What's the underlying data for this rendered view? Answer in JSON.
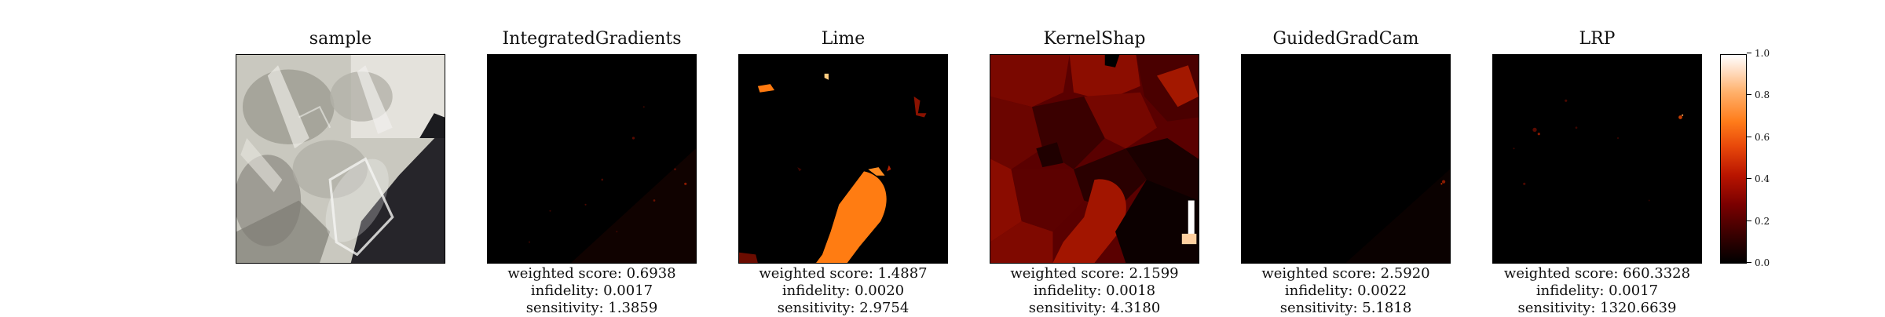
{
  "chart_data": {
    "type": "heatmap",
    "panels": [
      {
        "title": "sample",
        "metrics": []
      },
      {
        "title": "IntegratedGradients",
        "metrics": {
          "weighted_score": "weighted score: 0.6938",
          "infidelity": "infidelity: 0.0017",
          "sensitivity": "sensitivity: 1.3859"
        }
      },
      {
        "title": "Lime",
        "metrics": {
          "weighted_score": "weighted score: 1.4887",
          "infidelity": "infidelity: 0.0020",
          "sensitivity": "sensitivity: 2.9754"
        }
      },
      {
        "title": "KernelShap",
        "metrics": {
          "weighted_score": "weighted score: 2.1599",
          "infidelity": "infidelity: 0.0018",
          "sensitivity": "sensitivity: 4.3180"
        }
      },
      {
        "title": "GuidedGradCam",
        "metrics": {
          "weighted_score": "weighted score: 2.5920",
          "infidelity": "infidelity: 0.0022",
          "sensitivity": "sensitivity: 5.1818"
        }
      },
      {
        "title": "LRP",
        "metrics": {
          "weighted_score": "weighted score: 660.3328",
          "infidelity": "infidelity: 0.0017",
          "sensitivity": "sensitivity: 1320.6639"
        }
      }
    ],
    "colorbar": {
      "colormap": "gist_heat",
      "range": [
        0.0,
        1.0
      ],
      "ticks": [
        "0.0",
        "0.2",
        "0.4",
        "0.6",
        "0.8",
        "1.0"
      ]
    }
  }
}
